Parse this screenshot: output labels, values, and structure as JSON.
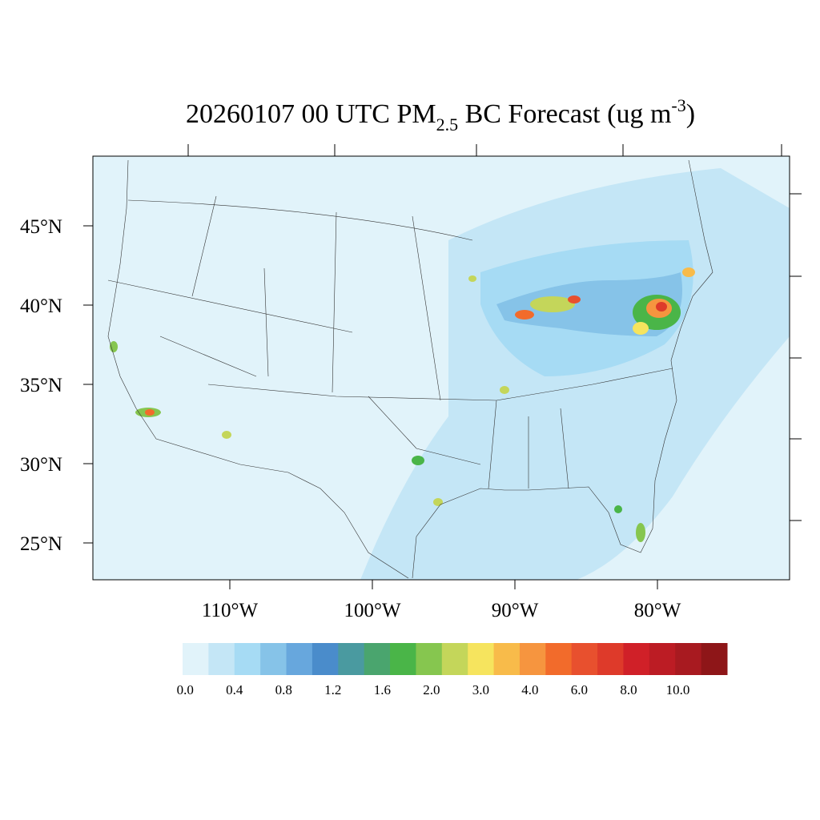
{
  "title": {
    "main": "20260107 00 UTC PM",
    "sub": "2.5",
    "rest": " BC Forecast (ug m",
    "sup": "-3",
    "close": ")"
  },
  "latitude_labels": [
    "45°N",
    "40°N",
    "35°N",
    "30°N",
    "25°N"
  ],
  "longitude_labels": [
    "110°W",
    "100°W",
    "90°W",
    "80°W"
  ],
  "colorbar": {
    "colors": [
      "#e1f3fa",
      "#c4e6f6",
      "#a6dbf4",
      "#86c3e8",
      "#67a7dd",
      "#4a8ccb",
      "#4a9aa0",
      "#4aa56e",
      "#4ab548",
      "#86c64f",
      "#c4d65a",
      "#f6e45e",
      "#f8bb4a",
      "#f6953f",
      "#f26b2b",
      "#e8502e",
      "#de3a2a",
      "#d02028",
      "#bc1c24",
      "#a81a20",
      "#8e1618"
    ],
    "labels": [
      "0.0",
      "0.4",
      "0.8",
      "1.2",
      "1.6",
      "2.0",
      "3.0",
      "4.0",
      "6.0",
      "8.0",
      "10.0"
    ]
  }
}
